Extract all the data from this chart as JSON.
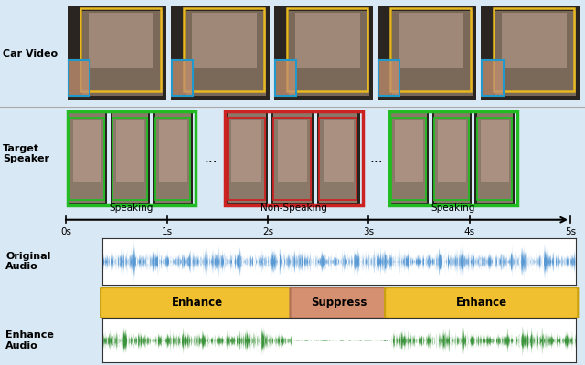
{
  "fig_width": 6.4,
  "fig_height": 4.0,
  "dpi": 100,
  "top_bg_color": "#d8e8f4",
  "bottom_bg_color": "#f5e6d5",
  "audio_blue": "#4a90d0",
  "audio_green": "#2a8a2a",
  "speaking_box_color": "#22bb22",
  "nonspeaking_box_color": "#cc2222",
  "car_video_box_color": "#e8b820",
  "car_video_box2_color": "#2299cc",
  "car_video_box3_color": "#cc8855",
  "enhance_color": "#f0c030",
  "suppress_color": "#d49070",
  "enhance_edge_color": "#c8a010",
  "suppress_edge_color": "#b07050",
  "car_video_label": "Car Video",
  "target_speaker_label": "Target\nSpeaker",
  "original_audio_label": "Original\nAudio",
  "enhance_audio_label": "Enhance\nAudio",
  "speaking_label": "Speaking",
  "nonspeaking_label": "Non-Speaking",
  "enhance_label": "Enhance",
  "suppress_label": "Suppress",
  "timeline_labels": [
    "0s",
    "1s",
    "2s",
    "3s",
    "4s",
    "5s"
  ]
}
